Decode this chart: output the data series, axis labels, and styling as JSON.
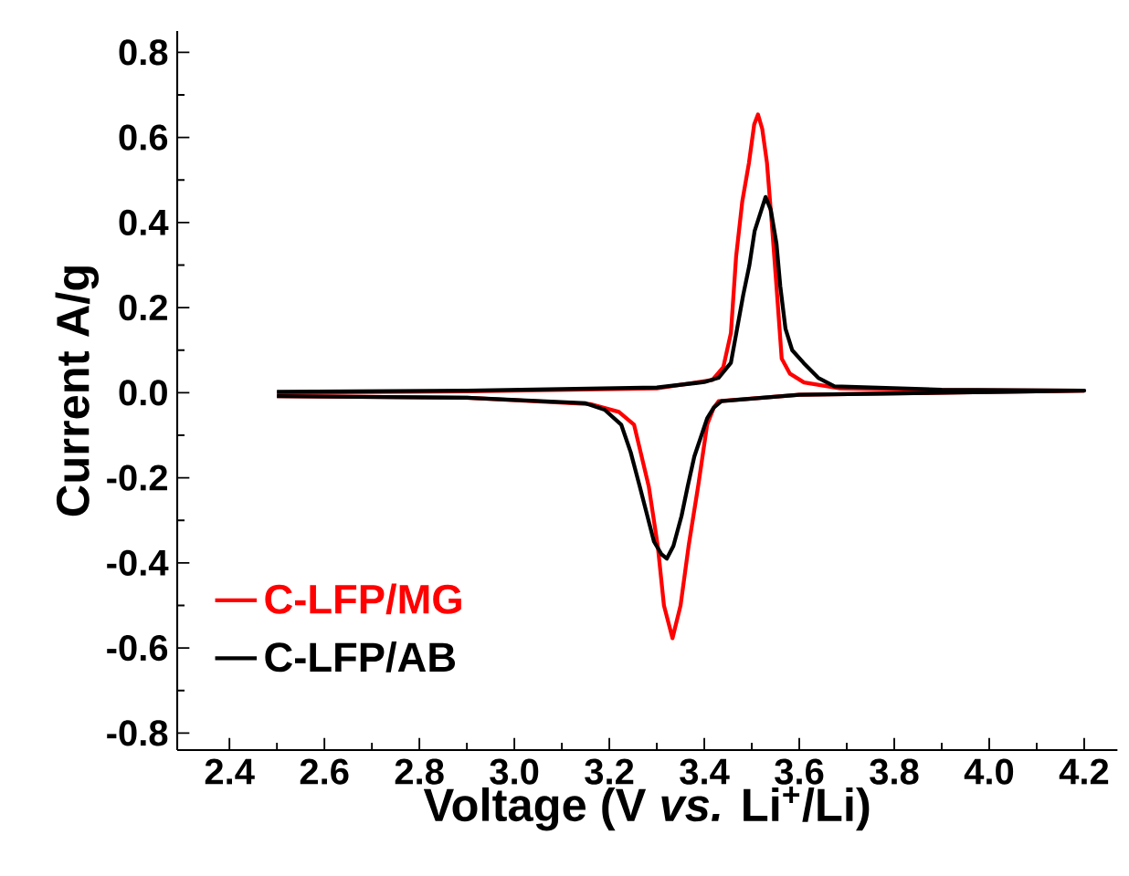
{
  "chart_data": {
    "type": "line",
    "xlabel": "Voltage (V *vs.* Li$^{+}$/Li)",
    "ylabel": "Current A/g",
    "xlim": [
      2.29,
      4.27
    ],
    "ylim": [
      -0.84,
      0.85
    ],
    "xticks": [
      2.4,
      2.6,
      2.8,
      {
        "value": 3.0,
        "label": "3.0"
      },
      3.2,
      3.4,
      3.6,
      3.8,
      {
        "value": 4.0,
        "label": "4.0"
      },
      4.2
    ],
    "yticks": [
      -0.8,
      -0.6,
      -0.4,
      -0.2,
      {
        "value": 0.0,
        "label": "0.0"
      },
      0.2,
      0.4,
      0.6,
      0.8
    ],
    "grid": false,
    "legend": "bottom left",
    "marker": "none",
    "line_style": "solid",
    "series": [
      {
        "name": "C-LFP/MG",
        "color": "#ff0000",
        "x": [
          2.5,
          2.9,
          3.3,
          3.417,
          3.44,
          3.456,
          3.467,
          3.48,
          3.494,
          3.505,
          3.513,
          3.522,
          3.532,
          3.542,
          3.552,
          3.563,
          3.58,
          3.61,
          3.686,
          3.9,
          4.2,
          3.9,
          3.6,
          3.43,
          3.42,
          3.406,
          3.387,
          3.367,
          3.35,
          3.333,
          3.315,
          3.302,
          3.283,
          3.252,
          3.22,
          3.16,
          2.9,
          2.5
        ],
        "values": [
          0.0,
          0.003,
          0.01,
          0.03,
          0.06,
          0.14,
          0.32,
          0.45,
          0.54,
          0.63,
          0.654,
          0.62,
          0.54,
          0.4,
          0.25,
          0.08,
          0.045,
          0.024,
          0.01,
          0.006,
          0.005,
          0.0,
          -0.005,
          -0.02,
          -0.035,
          -0.075,
          -0.22,
          -0.36,
          -0.5,
          -0.577,
          -0.5,
          -0.36,
          -0.22,
          -0.075,
          -0.045,
          -0.027,
          -0.012,
          -0.008
        ]
      },
      {
        "name": "C-LFP/AB",
        "color": "#000000",
        "x": [
          2.5,
          2.9,
          3.3,
          3.4,
          3.43,
          3.456,
          3.482,
          3.495,
          3.506,
          3.529,
          3.54,
          3.552,
          3.56,
          3.571,
          3.585,
          3.609,
          3.64,
          3.674,
          3.9,
          4.2,
          3.9,
          3.6,
          3.436,
          3.42,
          3.406,
          3.379,
          3.365,
          3.352,
          3.335,
          3.321,
          3.31,
          3.294,
          3.264,
          3.245,
          3.225,
          3.19,
          3.15,
          2.9,
          2.5
        ],
        "values": [
          0.002,
          0.005,
          0.012,
          0.025,
          0.035,
          0.07,
          0.23,
          0.3,
          0.38,
          0.46,
          0.43,
          0.35,
          0.25,
          0.15,
          0.1,
          0.07,
          0.035,
          0.015,
          0.007,
          0.005,
          0.0,
          -0.005,
          -0.02,
          -0.035,
          -0.06,
          -0.15,
          -0.22,
          -0.29,
          -0.36,
          -0.39,
          -0.38,
          -0.35,
          -0.22,
          -0.14,
          -0.075,
          -0.04,
          -0.025,
          -0.012,
          -0.008
        ]
      }
    ]
  }
}
